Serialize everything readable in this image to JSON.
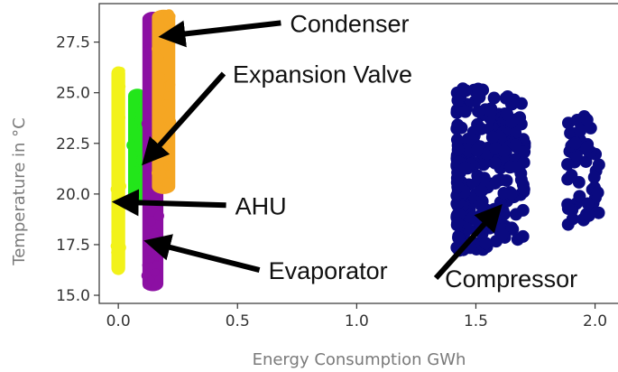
{
  "chart_data": {
    "type": "scatter",
    "xlabel": "Energy Consumption GWh",
    "ylabel": "Temperature in °C",
    "xlim": [
      -0.08,
      2.1
    ],
    "ylim": [
      14.6,
      29.4
    ],
    "xticks": [
      0.0,
      0.5,
      1.0,
      1.5,
      2.0
    ],
    "yticks": [
      15.0,
      17.5,
      20.0,
      22.5,
      25.0,
      27.5
    ],
    "grid": false,
    "series": [
      {
        "name": "AHU",
        "color": "#f2f21a",
        "kind": "band",
        "x": [
          -0.01,
          0.01
        ],
        "y": [
          16.0,
          26.3
        ]
      },
      {
        "name": "Expansion Valve",
        "color": "#22e61a",
        "kind": "band",
        "x": [
          0.06,
          0.1
        ],
        "y": [
          19.5,
          25.2
        ]
      },
      {
        "name": "Evaporator",
        "color": "#8c0fa3",
        "kind": "band",
        "x": [
          0.12,
          0.17
        ],
        "y": [
          15.2,
          29.0
        ]
      },
      {
        "name": "Condenser",
        "color": "#f5a623",
        "kind": "band",
        "x": [
          0.16,
          0.22
        ],
        "y": [
          20.0,
          29.1
        ]
      },
      {
        "name": "Compressor",
        "color": "#0a0a80",
        "kind": "cluster",
        "x": [
          1.42,
          2.02
        ],
        "y": [
          17.0,
          25.5
        ]
      }
    ],
    "annotations": [
      {
        "text": "Condenser",
        "x": 0.72,
        "y": 28.0,
        "arrow_to": [
          0.2,
          27.8
        ]
      },
      {
        "text": "Expansion Valve",
        "x": 0.48,
        "y": 25.5,
        "arrow_to": [
          0.12,
          21.7
        ]
      },
      {
        "text": "AHU",
        "x": 0.49,
        "y": 19.0,
        "arrow_to": [
          0.01,
          19.6
        ]
      },
      {
        "text": "Evaporator",
        "x": 0.63,
        "y": 15.8,
        "arrow_to": [
          0.14,
          17.6
        ]
      },
      {
        "text": "Compressor",
        "x": 1.37,
        "y": 15.4,
        "arrow_to": [
          1.58,
          19.1
        ]
      }
    ]
  }
}
